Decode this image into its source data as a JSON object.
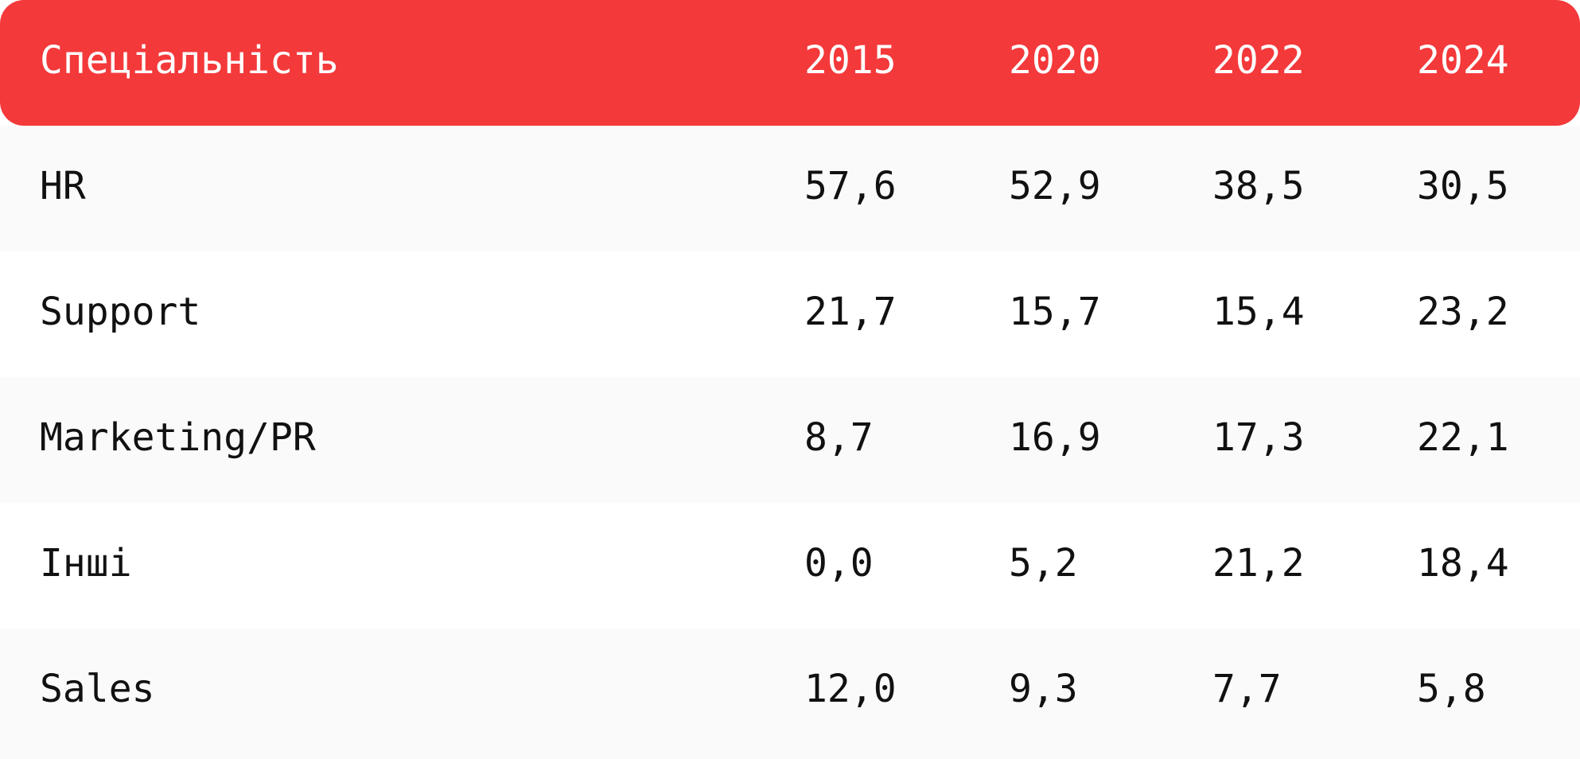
{
  "chart_data": {
    "type": "table",
    "header": {
      "label": "Спеціальність",
      "years": [
        "2015",
        "2020",
        "2022",
        "2024"
      ]
    },
    "rows": [
      {
        "label": "HR",
        "values": [
          "57,6",
          "52,9",
          "38,5",
          "30,5"
        ]
      },
      {
        "label": "Support",
        "values": [
          "21,7",
          "15,7",
          "15,4",
          "23,2"
        ]
      },
      {
        "label": "Marketing/PR",
        "values": [
          "8,7",
          "16,9",
          "17,3",
          "22,1"
        ]
      },
      {
        "label": "Інші",
        "values": [
          "0,0",
          "5,2",
          "21,2",
          "18,4"
        ]
      },
      {
        "label": "Sales",
        "values": [
          "12,0",
          "9,3",
          "7,7",
          "5,8"
        ]
      }
    ]
  },
  "colors": {
    "header_background": "#f4393b",
    "header_text": "#ffffff",
    "row_text": "#111111",
    "row_shaded_background": "#fafafa",
    "row_plain_background": "#ffffff"
  }
}
